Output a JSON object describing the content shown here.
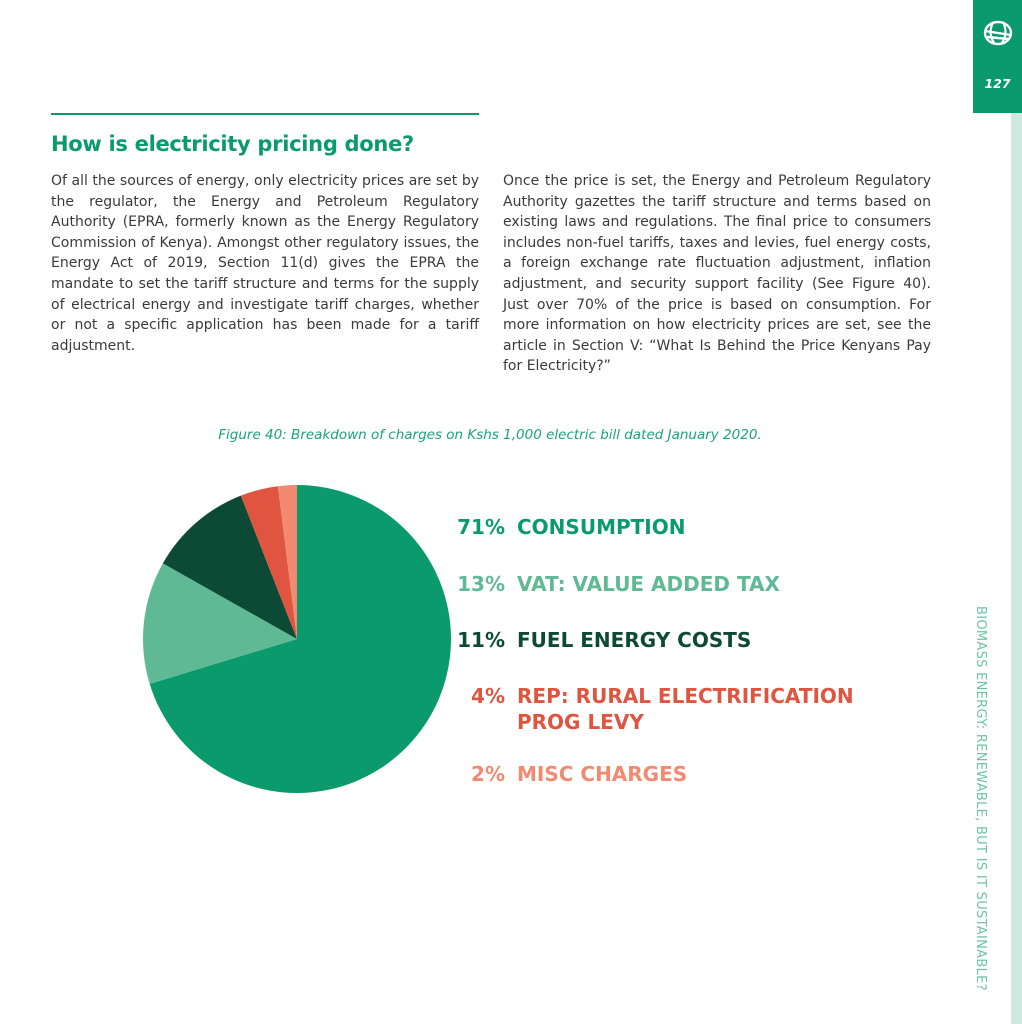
{
  "heading": "How is electricity pricing done?",
  "paragraph_left": "Of all the sources of energy, only electricity prices are set by the regulator, the Energy and Petroleum Regulatory Authority (EPRA, formerly known as the Energy Regulatory Commission of Kenya). Amongst other regulatory issues, the Energy Act of 2019, Section 11(d) gives the EPRA the mandate to set the tariff structure and terms for the supply of electrical energy and investigate tariff charges, whether or not a specific application has been made for a tariff adjustment.",
  "paragraph_right": "Once the price is set, the Energy and Petroleum Regulatory Authority gazettes the tariff structure and terms based on existing laws and regulations. The final price to consumers includes non-fuel tariffs, taxes and levies, fuel energy costs, a foreign exchange rate fluctuation adjustment, inflation adjustment, and security support facility (See Figure 40). Just over 70% of the price is based on consumption.  For more information on how electricity prices are set, see the article in Section V: “What Is Behind the Price Kenyans Pay for Electricity?”",
  "caption": "Figure 40: Breakdown of charges on Kshs 1,000 electric bill dated January 2020.",
  "side_tab": {
    "page_number": "127",
    "logo_icon": "globe-logo-icon"
  },
  "side_title": "BIOMASS ENERGY: RENEWABLE, BUT IS IT SUSTAINABLE?",
  "colors": {
    "accent": "#0a9a6c",
    "consumption": "#0a9a6c",
    "vat": "#5fb994",
    "fuel": "#0d4a36",
    "rep": "#df5540",
    "misc": "#f28a72"
  },
  "chart_data": {
    "type": "pie",
    "slices": [
      {
        "pct_label": "71%",
        "label": "CONSUMPTION",
        "value": 71,
        "color": "#0a9a6c"
      },
      {
        "pct_label": "13%",
        "label": "VAT: VALUE ADDED TAX",
        "value": 13,
        "color": "#5fb994"
      },
      {
        "pct_label": "11%",
        "label": "FUEL ENERGY COSTS",
        "value": 11,
        "color": "#0d4a36"
      },
      {
        "pct_label": "4%",
        "label": "REP: RURAL ELECTRIFICATION PROG LEVY",
        "value": 4,
        "color": "#df5540"
      },
      {
        "pct_label": "2%",
        "label": "MISC CHARGES",
        "value": 2,
        "color": "#f28a72"
      }
    ]
  }
}
